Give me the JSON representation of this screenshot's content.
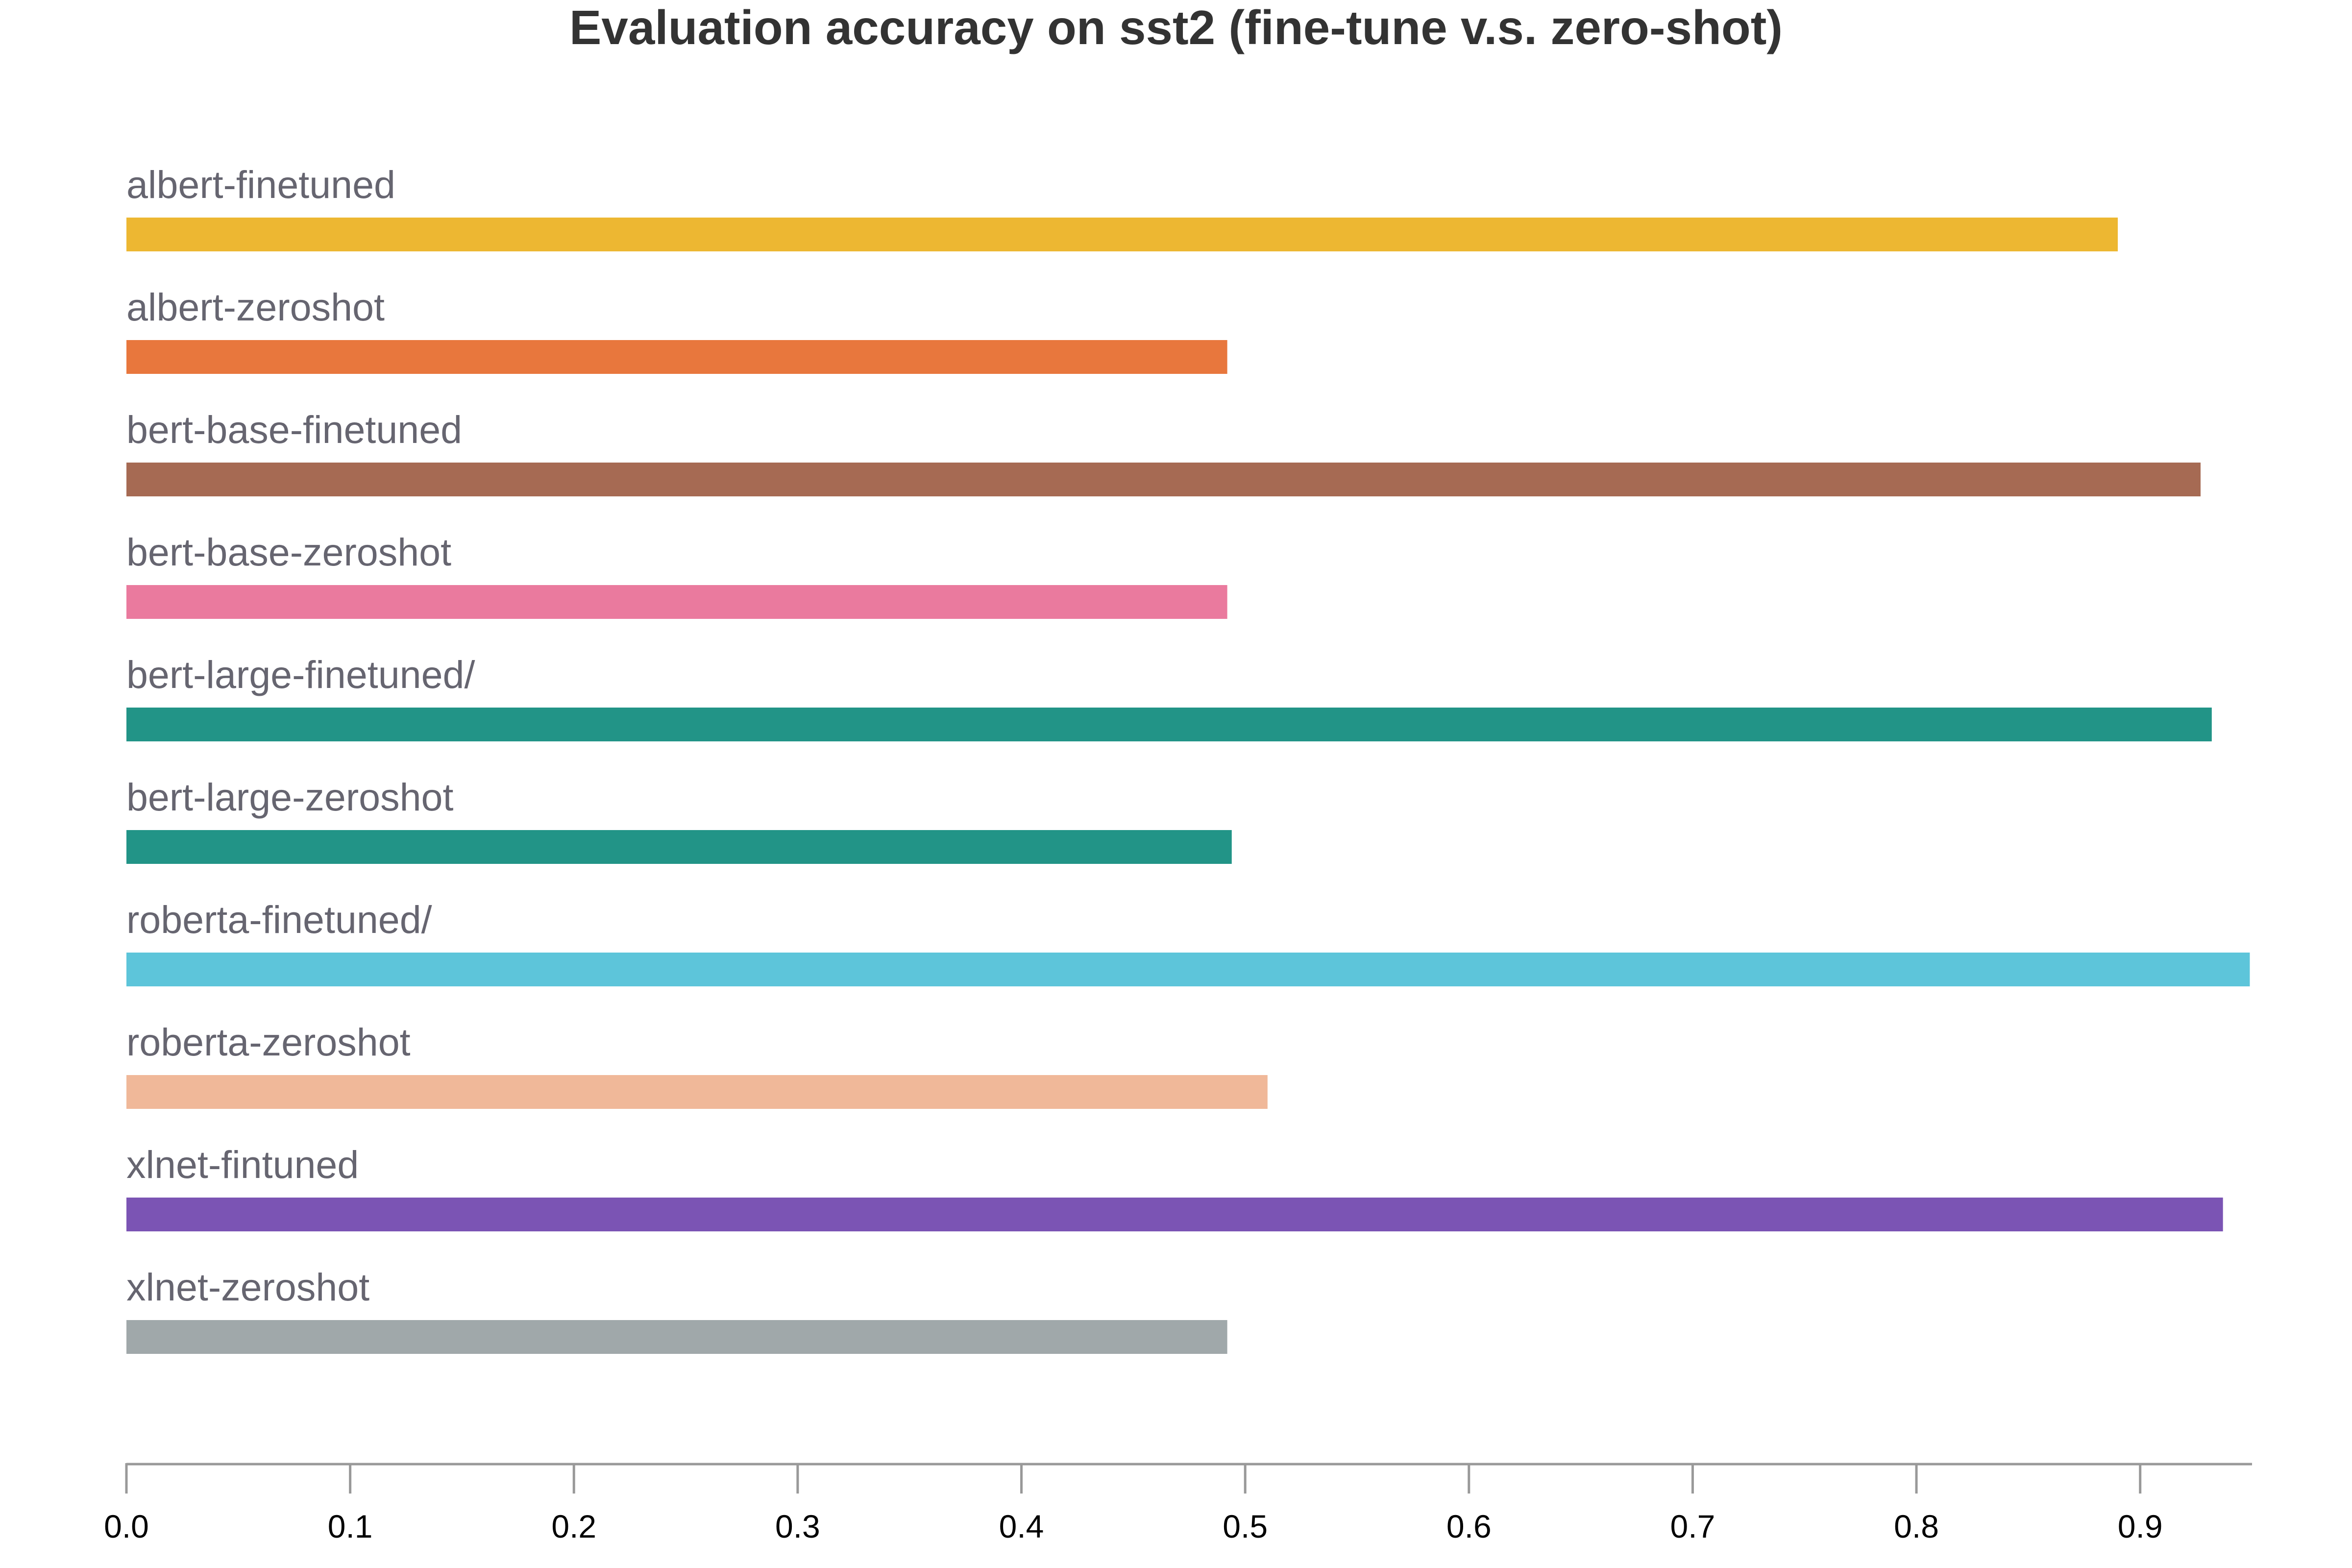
{
  "chart_data": {
    "type": "bar",
    "orientation": "horizontal",
    "title": "Evaluation accuracy on sst2 (fine-tune v.s. zero-shot)",
    "xlabel": "",
    "ylabel": "",
    "xlim": [
      0,
      0.95
    ],
    "grid": false,
    "legend": "none",
    "x_ticks": [
      "0.0",
      "0.1",
      "0.2",
      "0.3",
      "0.4",
      "0.5",
      "0.6",
      "0.7",
      "0.8",
      "0.9"
    ],
    "x_tick_values": [
      0,
      0.1,
      0.2,
      0.3,
      0.4,
      0.5,
      0.6,
      0.7,
      0.8,
      0.9
    ],
    "bars": [
      {
        "label": "albert-finetuned",
        "value": 0.89,
        "color": "#EDB732"
      },
      {
        "label": "albert-zeroshot",
        "value": 0.492,
        "color": "#E8773D"
      },
      {
        "label": "bert-base-finetuned",
        "value": 0.927,
        "color": "#A66A53"
      },
      {
        "label": "bert-base-zeroshot",
        "value": 0.492,
        "color": "#EA7A9E"
      },
      {
        "label": "bert-large-finetuned/",
        "value": 0.932,
        "color": "#229487"
      },
      {
        "label": "bert-large-zeroshot",
        "value": 0.494,
        "color": "#229487"
      },
      {
        "label": "roberta-finetuned/",
        "value": 0.949,
        "color": "#5DC5DA"
      },
      {
        "label": "roberta-zeroshot",
        "value": 0.51,
        "color": "#F0B899"
      },
      {
        "label": "xlnet-fintuned",
        "value": 0.937,
        "color": "#7B54B4"
      },
      {
        "label": "xlnet-zeroshot",
        "value": 0.492,
        "color": "#A0A8AA"
      }
    ]
  }
}
